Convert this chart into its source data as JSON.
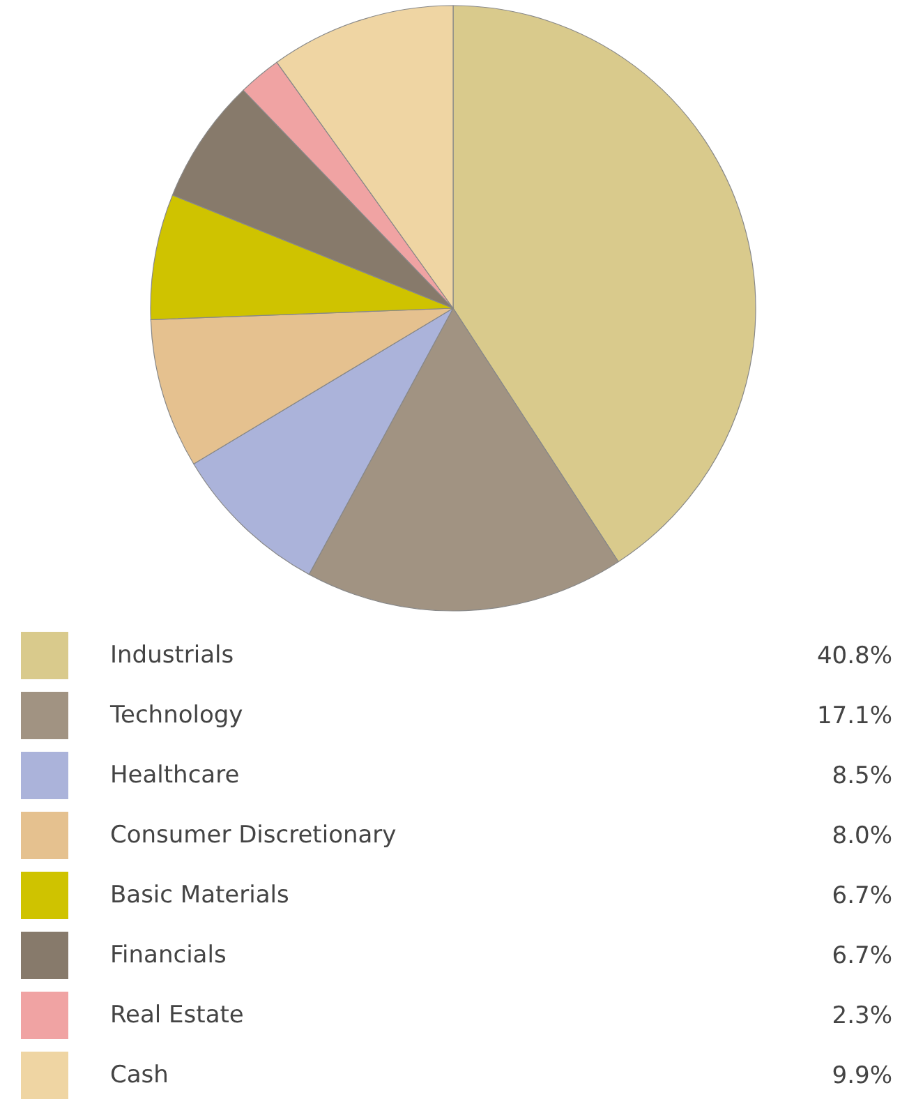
{
  "chart_data": {
    "type": "pie",
    "categories": [
      "Industrials",
      "Technology",
      "Healthcare",
      "Consumer Discretionary",
      "Basic Materials",
      "Financials",
      "Real Estate",
      "Cash"
    ],
    "values": [
      40.8,
      17.1,
      8.5,
      8.0,
      6.7,
      6.7,
      2.3,
      9.9
    ],
    "value_labels": [
      "40.8%",
      "17.1%",
      "8.5%",
      "8.0%",
      "6.7%",
      "6.7%",
      "2.3%",
      "9.9%"
    ],
    "colors": [
      "#d9ca8c",
      "#a19382",
      "#abb3da",
      "#e5c18f",
      "#cfc300",
      "#877a6b",
      "#f0a3a3",
      "#efd5a3"
    ],
    "legend": "bottom"
  }
}
